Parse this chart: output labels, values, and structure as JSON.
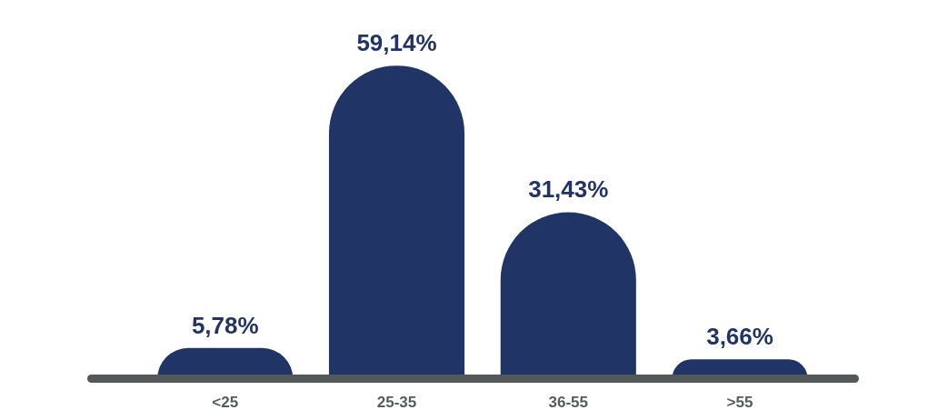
{
  "chart_data": {
    "type": "bar",
    "categories": [
      "<25",
      "25-35",
      "36-55",
      ">55"
    ],
    "values": [
      5.78,
      59.14,
      31.43,
      3.66
    ],
    "value_labels": [
      "5,78%",
      "59,14%",
      "31,43%",
      "3,66%"
    ],
    "color": "#203566"
  }
}
